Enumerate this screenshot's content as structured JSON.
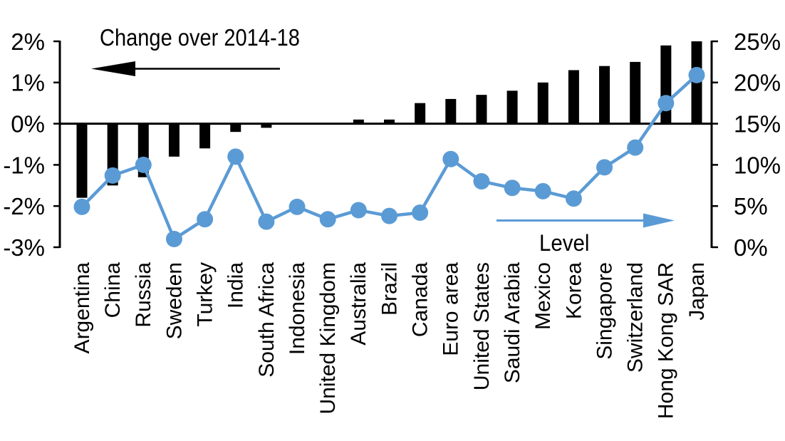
{
  "chart_data": {
    "type": "bar",
    "subtype": "bar-line-combo",
    "title": "",
    "categories": [
      "Argentina",
      "China",
      "Russia",
      "Sweden",
      "Turkey",
      "India",
      "South Africa",
      "Indonesia",
      "United Kingdom",
      "Australia",
      "Brazil",
      "Canada",
      "Euro area",
      "United States",
      "Saudi Arabia",
      "Mexico",
      "Korea",
      "Singapore",
      "Switzerland",
      "Hong Kong SAR",
      "Japan"
    ],
    "series": [
      {
        "name": "Change over 2014-18",
        "type": "bar",
        "axis": "left",
        "color": "#000000",
        "unit": "%",
        "values": [
          -1.8,
          -1.5,
          -1.3,
          -0.8,
          -0.6,
          -0.2,
          -0.1,
          0,
          0,
          0.1,
          0.1,
          0.5,
          0.6,
          0.7,
          0.8,
          1.0,
          1.3,
          1.4,
          1.5,
          1.9,
          2.0
        ]
      },
      {
        "name": "Level",
        "type": "line",
        "axis": "right",
        "color": "#5B9BD5",
        "unit": "%",
        "values": [
          4.9,
          8.7,
          10.0,
          1.0,
          3.4,
          11.0,
          3.1,
          4.9,
          3.4,
          4.5,
          3.8,
          4.2,
          10.7,
          8.0,
          7.2,
          6.8,
          5.9,
          9.7,
          12.1,
          17.5,
          20.9
        ]
      }
    ],
    "left_axis": {
      "min": -3,
      "max": 2,
      "tick_labels": [
        "2%",
        "1%",
        "0%",
        "-1%",
        "-2%",
        "-3%"
      ]
    },
    "right_axis": {
      "min": 0,
      "max": 25,
      "tick_labels": [
        "25%",
        "20%",
        "15%",
        "10%",
        "5%",
        "0%"
      ]
    },
    "grid": false,
    "legend_position": "none",
    "annotations": {
      "bar_series_label": "Change over 2014-18",
      "bar_arrow_direction": "left",
      "line_series_label": "Level",
      "line_arrow_direction": "right"
    }
  },
  "colors": {
    "bar": "#000000",
    "line": "#5B9BD5",
    "axis": "#000000",
    "text": "#000000",
    "background": "#FFFFFF"
  }
}
